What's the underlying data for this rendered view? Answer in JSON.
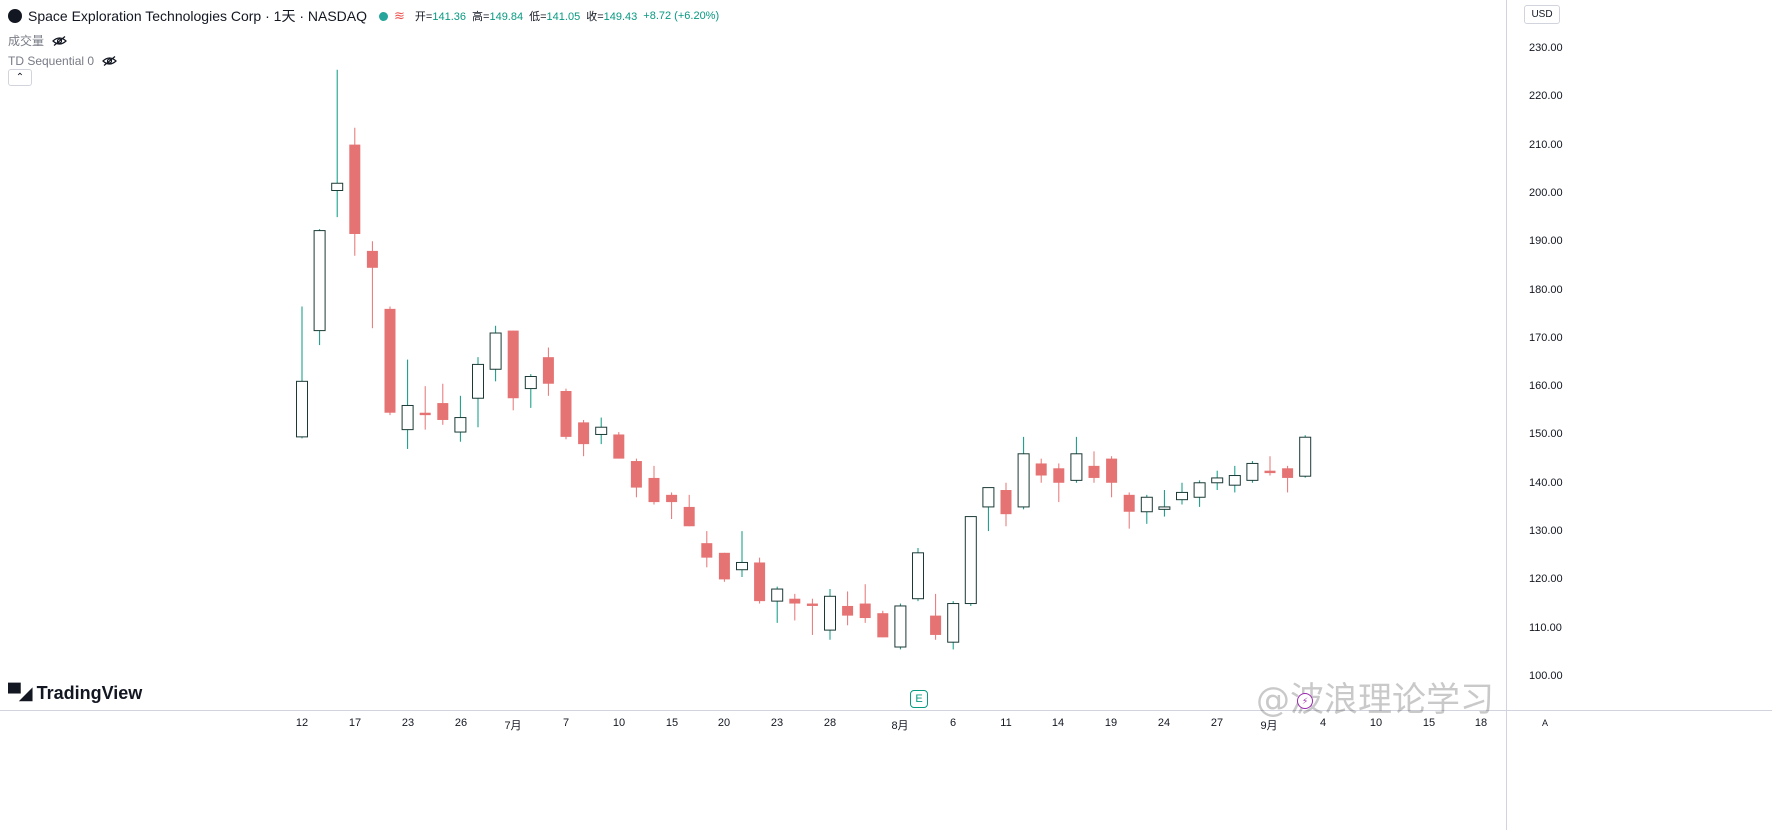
{
  "header": {
    "symbol_line": "Space Exploration Technologies Corp · 1天 · NASDAQ",
    "ohlc": {
      "open_label": "开",
      "open": "141.36",
      "high_label": "高",
      "high": "149.84",
      "low_label": "低",
      "low": "141.05",
      "close_label": "收",
      "close": "149.43",
      "change": "+8.72 (+6.20%)"
    },
    "volume_label": "成交量",
    "indicator_label": "TD Sequential 0",
    "collapse_glyph": "⌃"
  },
  "price_axis": {
    "currency": "USD",
    "labels": [
      "230.00",
      "220.00",
      "210.00",
      "200.00",
      "190.00",
      "180.00",
      "170.00",
      "160.00",
      "150.00",
      "140.00",
      "130.00",
      "120.00",
      "110.00",
      "100.00"
    ],
    "auto_label": "A"
  },
  "time_axis": {
    "labels": [
      "12",
      "17",
      "23",
      "26",
      "7月",
      "7",
      "10",
      "15",
      "20",
      "23",
      "28",
      "8月",
      "6",
      "11",
      "14",
      "19",
      "24",
      "27",
      "9月",
      "4",
      "10",
      "15",
      "18"
    ]
  },
  "branding": {
    "logo_text": "TradingView",
    "earnings_badge": "E",
    "watermark": "@波浪理论学习",
    "bolt": "⚡"
  },
  "colors": {
    "up": "#089981",
    "down": "#e57373",
    "axis": "#d1d4dc",
    "text": "#131722"
  },
  "chart_data": {
    "type": "candlestick",
    "ylim": [
      98,
      234
    ],
    "grid": false,
    "candles": [
      {
        "o": 149.5,
        "h": 176.5,
        "l": 149.2,
        "c": 161.0
      },
      {
        "o": 171.5,
        "h": 192.5,
        "l": 168.5,
        "c": 192.2
      },
      {
        "o": 200.5,
        "h": 225.5,
        "l": 195.0,
        "c": 202.0
      },
      {
        "o": 210.0,
        "h": 213.5,
        "l": 187.0,
        "c": 191.5
      },
      {
        "o": 188.0,
        "h": 190.0,
        "l": 172.0,
        "c": 184.5
      },
      {
        "o": 176.0,
        "h": 176.5,
        "l": 154.0,
        "c": 154.5
      },
      {
        "o": 151.0,
        "h": 165.5,
        "l": 147.0,
        "c": 156.0
      },
      {
        "o": 154.5,
        "h": 160.0,
        "l": 151.0,
        "c": 154.0
      },
      {
        "o": 156.5,
        "h": 160.5,
        "l": 152.0,
        "c": 153.0
      },
      {
        "o": 150.5,
        "h": 158.0,
        "l": 148.5,
        "c": 153.5
      },
      {
        "o": 157.5,
        "h": 166.0,
        "l": 151.5,
        "c": 164.5
      },
      {
        "o": 163.5,
        "h": 172.5,
        "l": 161.0,
        "c": 171.0
      },
      {
        "o": 171.5,
        "h": 171.5,
        "l": 155.0,
        "c": 157.5
      },
      {
        "o": 159.5,
        "h": 162.5,
        "l": 155.5,
        "c": 162.0
      },
      {
        "o": 166.0,
        "h": 168.0,
        "l": 158.0,
        "c": 160.5
      },
      {
        "o": 159.0,
        "h": 159.5,
        "l": 149.0,
        "c": 149.5
      },
      {
        "o": 152.5,
        "h": 153.0,
        "l": 145.5,
        "c": 148.0
      },
      {
        "o": 150.0,
        "h": 153.5,
        "l": 148.0,
        "c": 151.5
      },
      {
        "o": 150.0,
        "h": 150.5,
        "l": 145.0,
        "c": 145.0
      },
      {
        "o": 144.5,
        "h": 145.0,
        "l": 137.0,
        "c": 139.0
      },
      {
        "o": 141.0,
        "h": 143.5,
        "l": 135.5,
        "c": 136.0
      },
      {
        "o": 137.5,
        "h": 138.0,
        "l": 132.5,
        "c": 136.0
      },
      {
        "o": 135.0,
        "h": 137.5,
        "l": 131.0,
        "c": 131.0
      },
      {
        "o": 127.5,
        "h": 130.0,
        "l": 122.5,
        "c": 124.5
      },
      {
        "o": 125.5,
        "h": 125.5,
        "l": 119.5,
        "c": 120.0
      },
      {
        "o": 122.0,
        "h": 130.0,
        "l": 120.5,
        "c": 123.5
      },
      {
        "o": 123.5,
        "h": 124.5,
        "l": 115.0,
        "c": 115.5
      },
      {
        "o": 115.5,
        "h": 118.5,
        "l": 111.0,
        "c": 118.0
      },
      {
        "o": 116.0,
        "h": 117.0,
        "l": 111.5,
        "c": 115.0
      },
      {
        "o": 115.0,
        "h": 116.0,
        "l": 108.5,
        "c": 114.5
      },
      {
        "o": 109.5,
        "h": 118.0,
        "l": 107.5,
        "c": 116.5
      },
      {
        "o": 114.5,
        "h": 117.5,
        "l": 110.5,
        "c": 112.5
      },
      {
        "o": 115.0,
        "h": 119.0,
        "l": 111.0,
        "c": 112.0
      },
      {
        "o": 113.0,
        "h": 113.5,
        "l": 108.0,
        "c": 108.0
      },
      {
        "o": 106.0,
        "h": 115.0,
        "l": 105.5,
        "c": 114.5
      },
      {
        "o": 116.0,
        "h": 126.5,
        "l": 115.5,
        "c": 125.5
      },
      {
        "o": 112.5,
        "h": 117.0,
        "l": 107.5,
        "c": 108.5
      },
      {
        "o": 107.0,
        "h": 115.5,
        "l": 105.5,
        "c": 115.0
      },
      {
        "o": 115.0,
        "h": 133.0,
        "l": 114.5,
        "c": 133.0
      },
      {
        "o": 135.0,
        "h": 139.0,
        "l": 130.0,
        "c": 139.0
      },
      {
        "o": 138.5,
        "h": 140.0,
        "l": 131.0,
        "c": 133.5
      },
      {
        "o": 135.0,
        "h": 149.5,
        "l": 134.5,
        "c": 146.0
      },
      {
        "o": 144.0,
        "h": 145.0,
        "l": 140.0,
        "c": 141.5
      },
      {
        "o": 143.0,
        "h": 144.0,
        "l": 136.0,
        "c": 140.0
      },
      {
        "o": 140.5,
        "h": 149.5,
        "l": 140.0,
        "c": 146.0
      },
      {
        "o": 143.5,
        "h": 146.5,
        "l": 140.0,
        "c": 141.0
      },
      {
        "o": 145.0,
        "h": 145.5,
        "l": 137.0,
        "c": 140.0
      },
      {
        "o": 137.5,
        "h": 138.0,
        "l": 130.5,
        "c": 134.0
      },
      {
        "o": 134.0,
        "h": 137.5,
        "l": 131.5,
        "c": 137.0
      },
      {
        "o": 134.5,
        "h": 138.5,
        "l": 133.0,
        "c": 135.0
      },
      {
        "o": 136.5,
        "h": 140.0,
        "l": 135.5,
        "c": 138.0
      },
      {
        "o": 137.0,
        "h": 140.5,
        "l": 135.0,
        "c": 140.0
      },
      {
        "o": 140.0,
        "h": 142.5,
        "l": 138.5,
        "c": 141.0
      },
      {
        "o": 139.5,
        "h": 143.5,
        "l": 138.0,
        "c": 141.5
      },
      {
        "o": 140.5,
        "h": 144.5,
        "l": 140.0,
        "c": 144.0
      },
      {
        "o": 142.5,
        "h": 145.5,
        "l": 141.5,
        "c": 142.0
      },
      {
        "o": 143.0,
        "h": 143.5,
        "l": 138.0,
        "c": 141.0
      },
      {
        "o": 141.36,
        "h": 149.84,
        "l": 141.05,
        "c": 149.43
      }
    ]
  }
}
